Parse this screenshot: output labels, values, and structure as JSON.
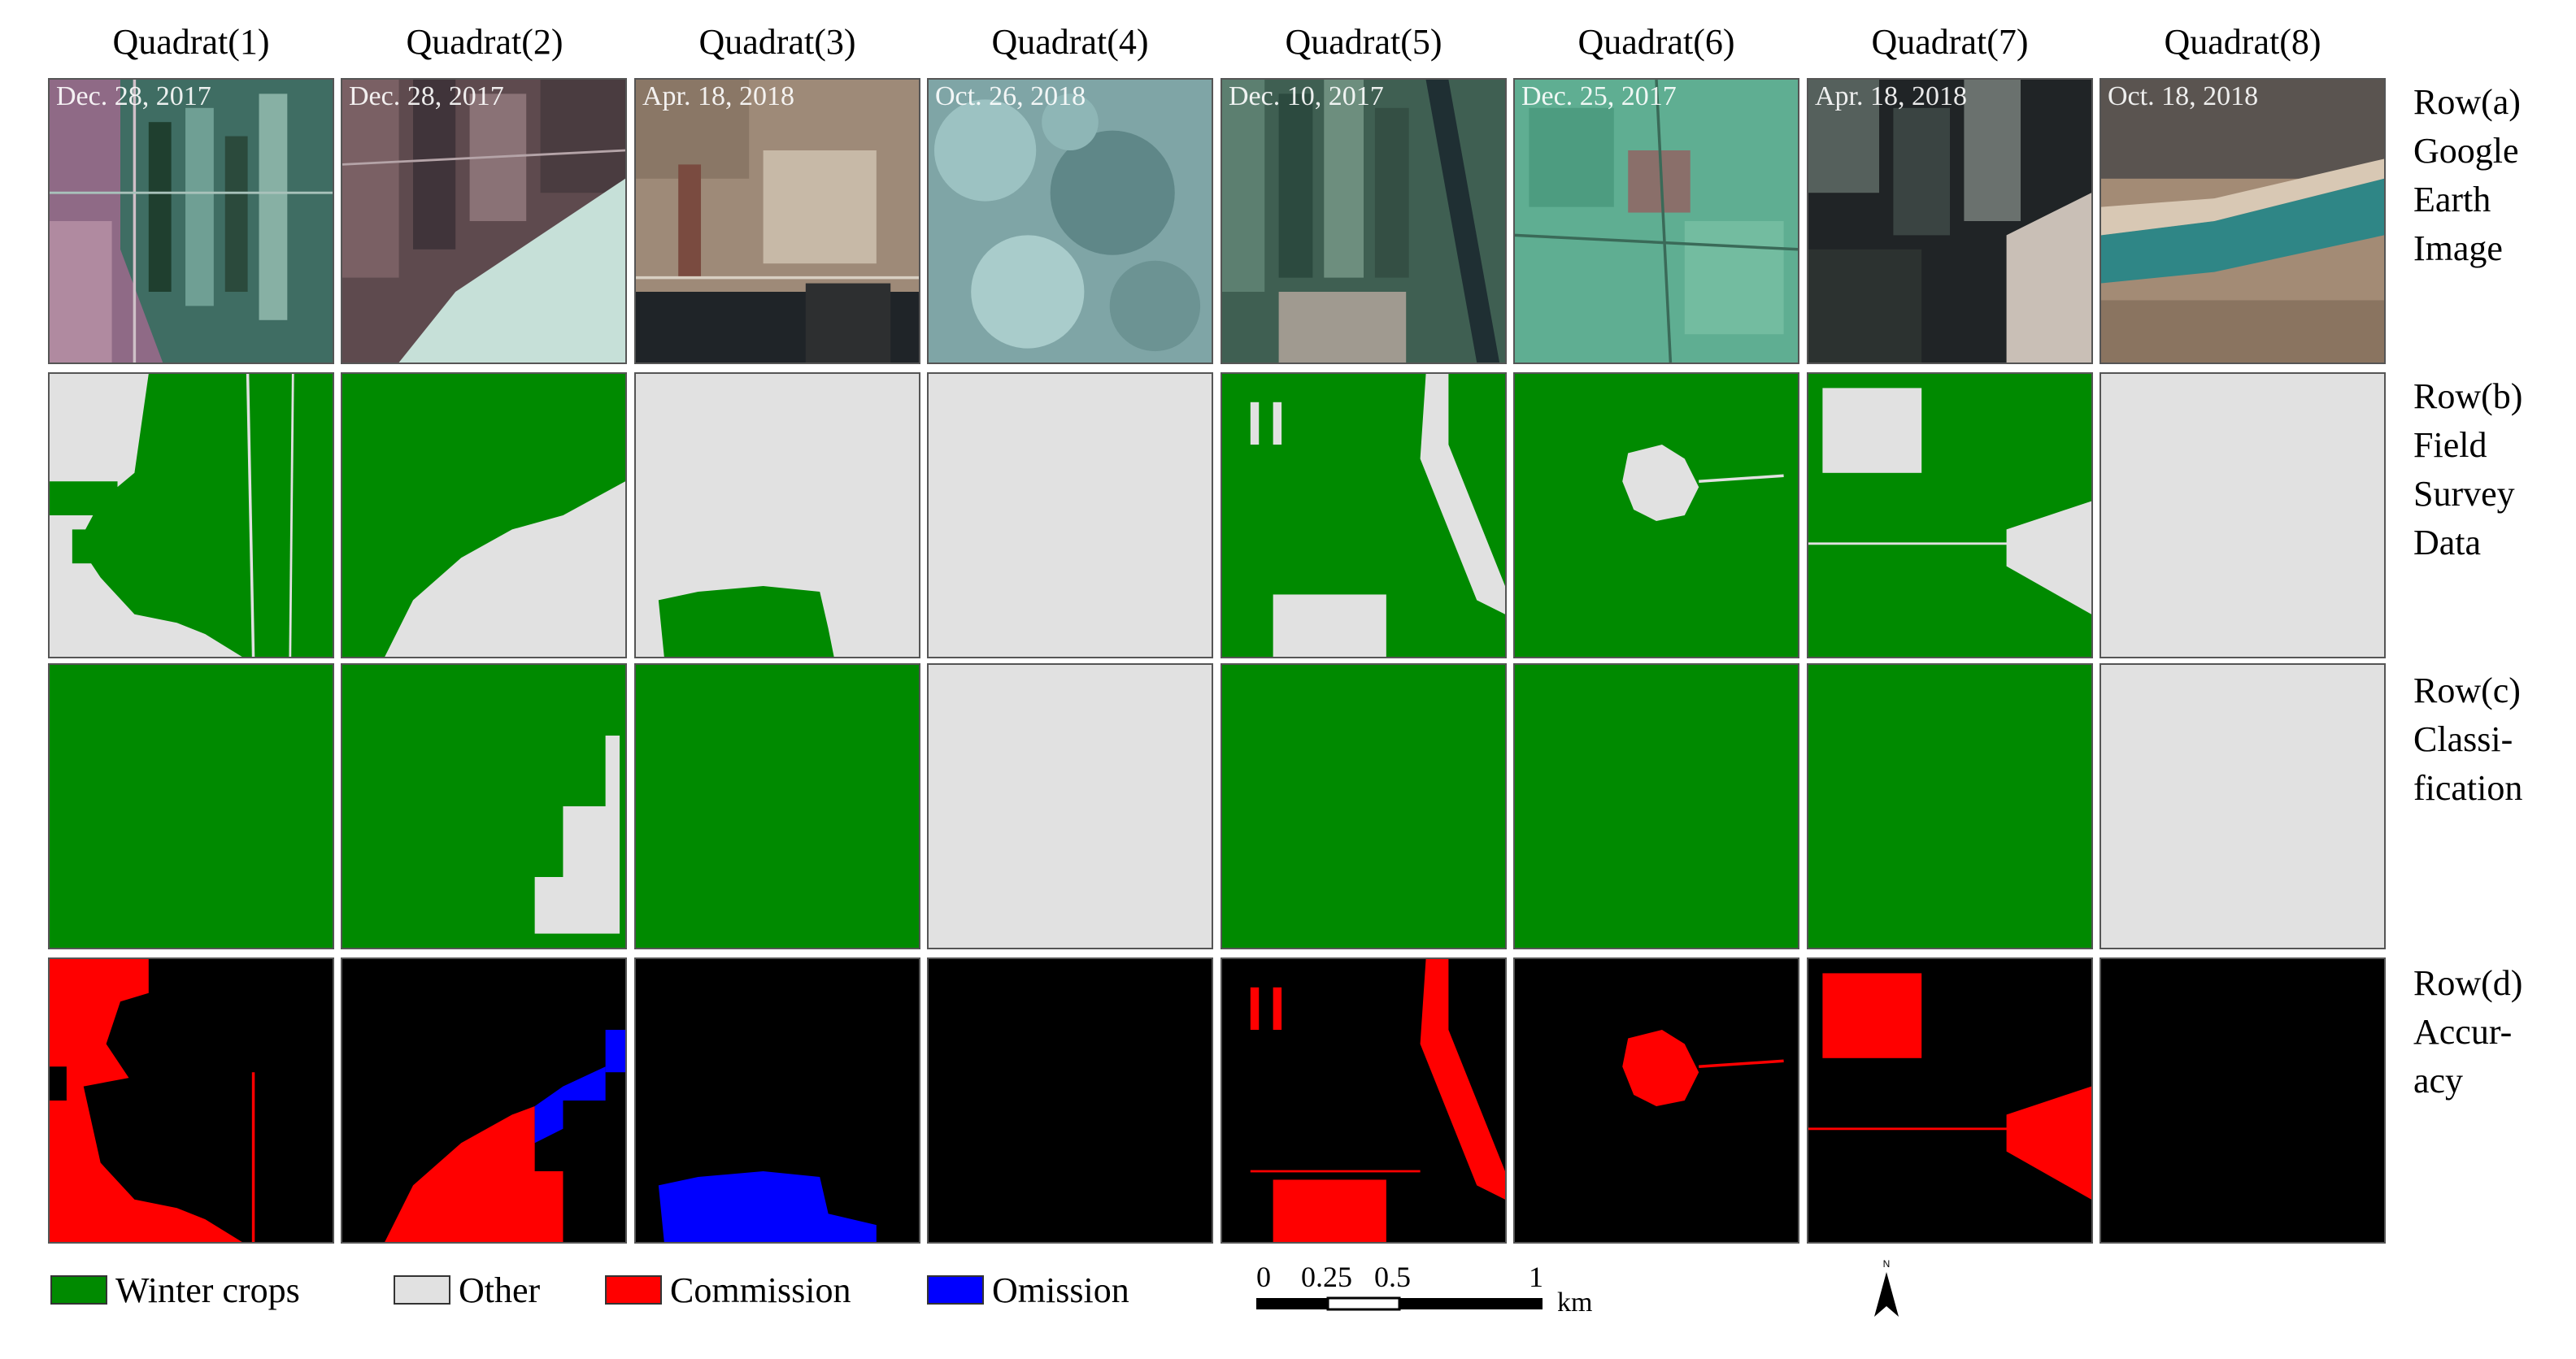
{
  "colors": {
    "winter_crops": "#008a00",
    "other": "#e1e1e1",
    "commission": "#ff0000",
    "omission": "#0000ff",
    "background": "#000000"
  },
  "columns": [
    {
      "label": "Quadrat(1)",
      "date": "Dec. 28, 2017"
    },
    {
      "label": "Quadrat(2)",
      "date": "Dec. 28, 2017"
    },
    {
      "label": "Quadrat(3)",
      "date": "Apr. 18, 2018"
    },
    {
      "label": "Quadrat(4)",
      "date": "Oct. 26, 2018"
    },
    {
      "label": "Quadrat(5)",
      "date": "Dec. 10, 2017"
    },
    {
      "label": "Quadrat(6)",
      "date": "Dec. 25, 2017"
    },
    {
      "label": "Quadrat(7)",
      "date": "Apr. 18, 2018"
    },
    {
      "label": "Quadrat(8)",
      "date": "Oct. 18, 2018"
    }
  ],
  "rows": [
    {
      "lines": [
        "Row(a)",
        "Google",
        "Earth",
        "Image"
      ]
    },
    {
      "lines": [
        "Row(b)",
        "Field",
        "Survey",
        "Data"
      ]
    },
    {
      "lines": [
        "Row(c)",
        "Classi-",
        "fication"
      ]
    },
    {
      "lines": [
        "Row(d)",
        "Accur-",
        "acy"
      ]
    }
  ],
  "legend": [
    {
      "label": "Winter crops"
    },
    {
      "label": "Other"
    },
    {
      "label": "Commission"
    },
    {
      "label": "Omission"
    }
  ],
  "scale_bar": {
    "ticks": [
      "0",
      "0.25",
      "0.5",
      "1"
    ],
    "unit": "km"
  },
  "north_arrow": {
    "label": "N",
    "icon": "north-arrow-icon"
  }
}
